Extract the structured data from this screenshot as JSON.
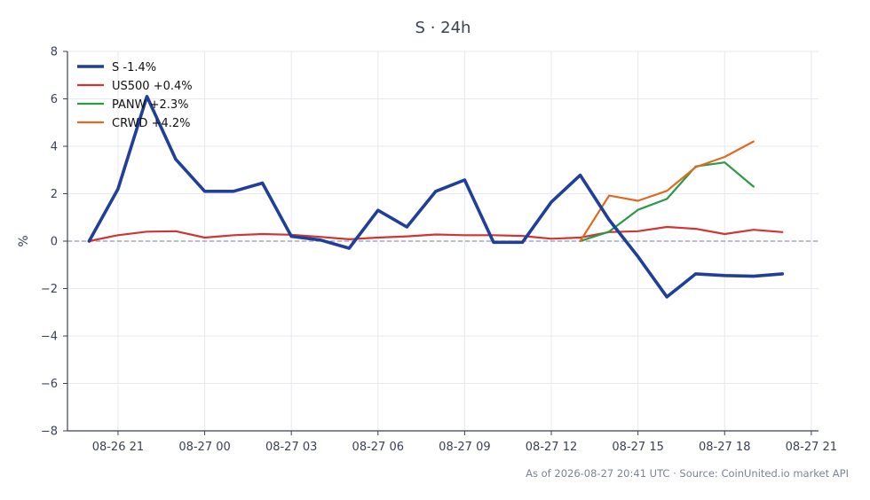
{
  "chart_data": {
    "type": "line",
    "title": "S · 24h",
    "xlabel": "",
    "ylabel": "%",
    "ylim": [
      -8,
      8
    ],
    "yticks": [
      -8,
      -6,
      -4,
      -2,
      0,
      2,
      4,
      6,
      8
    ],
    "yticklabels": [
      "−8",
      "−6",
      "−4",
      "−2",
      "0",
      "2",
      "4",
      "6",
      "8"
    ],
    "xlim": [
      "2026-08-26 19:15",
      "2026-08-27 21:15"
    ],
    "xticks": [
      "2026-08-26 21:00",
      "2026-08-27 00:00",
      "2026-08-27 03:00",
      "2026-08-27 06:00",
      "2026-08-27 09:00",
      "2026-08-27 12:00",
      "2026-08-27 15:00",
      "2026-08-27 18:00",
      "2026-08-27 21:00"
    ],
    "xticklabels": [
      "08-26 21",
      "08-27 00",
      "08-27 03",
      "08-27 06",
      "08-27 09",
      "08-27 12",
      "08-27 15",
      "08-27 18",
      "08-27 21"
    ],
    "grid": true,
    "zero_line": true,
    "legend_position": "top-left",
    "series": [
      {
        "name": "S -1.4%",
        "color": "#1f3f9a",
        "x": [
          "2026-08-26 20:00",
          "2026-08-26 21:00",
          "2026-08-26 22:00",
          "2026-08-26 23:00",
          "2026-08-27 00:00",
          "2026-08-27 01:00",
          "2026-08-27 02:00",
          "2026-08-27 03:00",
          "2026-08-27 04:00",
          "2026-08-27 05:00",
          "2026-08-27 06:00",
          "2026-08-27 07:00",
          "2026-08-27 08:00",
          "2026-08-27 09:00",
          "2026-08-27 10:00",
          "2026-08-27 11:00",
          "2026-08-27 12:00",
          "2026-08-27 13:00",
          "2026-08-27 14:00",
          "2026-08-27 15:00",
          "2026-08-27 16:00",
          "2026-08-27 17:00",
          "2026-08-27 18:00",
          "2026-08-27 19:00",
          "2026-08-27 20:00"
        ],
        "y": [
          0.0,
          2.2,
          6.1,
          3.45,
          2.1,
          2.1,
          2.45,
          0.2,
          0.05,
          -0.3,
          1.3,
          0.6,
          2.1,
          2.58,
          -0.05,
          -0.05,
          1.65,
          2.78,
          0.9,
          -0.65,
          -2.35,
          -1.38,
          -1.45,
          -1.48,
          -1.38
        ]
      },
      {
        "name": "US500 +0.4%",
        "color": "#d13434",
        "x": [
          "2026-08-26 20:00",
          "2026-08-26 21:00",
          "2026-08-26 22:00",
          "2026-08-26 23:00",
          "2026-08-27 00:00",
          "2026-08-27 01:00",
          "2026-08-27 02:00",
          "2026-08-27 03:00",
          "2026-08-27 04:00",
          "2026-08-27 05:00",
          "2026-08-27 06:00",
          "2026-08-27 07:00",
          "2026-08-27 08:00",
          "2026-08-27 09:00",
          "2026-08-27 10:00",
          "2026-08-27 11:00",
          "2026-08-27 12:00",
          "2026-08-27 13:00",
          "2026-08-27 14:00",
          "2026-08-27 15:00",
          "2026-08-27 16:00",
          "2026-08-27 17:00",
          "2026-08-27 18:00",
          "2026-08-27 19:00",
          "2026-08-27 20:00"
        ],
        "y": [
          0.0,
          0.25,
          0.4,
          0.42,
          0.15,
          0.25,
          0.3,
          0.27,
          0.18,
          0.08,
          0.15,
          0.2,
          0.28,
          0.25,
          0.25,
          0.22,
          0.1,
          0.15,
          0.38,
          0.42,
          0.6,
          0.52,
          0.3,
          0.48,
          0.38
        ]
      },
      {
        "name": "PANW +2.3%",
        "color": "#2a9a48",
        "x": [
          "2026-08-27 13:00",
          "2026-08-27 14:00",
          "2026-08-27 15:00",
          "2026-08-27 16:00",
          "2026-08-27 17:00",
          "2026-08-27 18:00",
          "2026-08-27 19:00"
        ],
        "y": [
          0.0,
          0.4,
          1.32,
          1.78,
          3.15,
          3.32,
          2.3
        ]
      },
      {
        "name": "CRWD +4.2%",
        "color": "#e06a20",
        "x": [
          "2026-08-27 13:00",
          "2026-08-27 14:00",
          "2026-08-27 15:00",
          "2026-08-27 16:00",
          "2026-08-27 17:00",
          "2026-08-27 18:00",
          "2026-08-27 19:00"
        ],
        "y": [
          0.0,
          1.92,
          1.7,
          2.12,
          3.12,
          3.55,
          4.2
        ]
      }
    ]
  },
  "footer": "As of 2026-08-27 20:41 UTC · Source: CoinUnited.io market API"
}
